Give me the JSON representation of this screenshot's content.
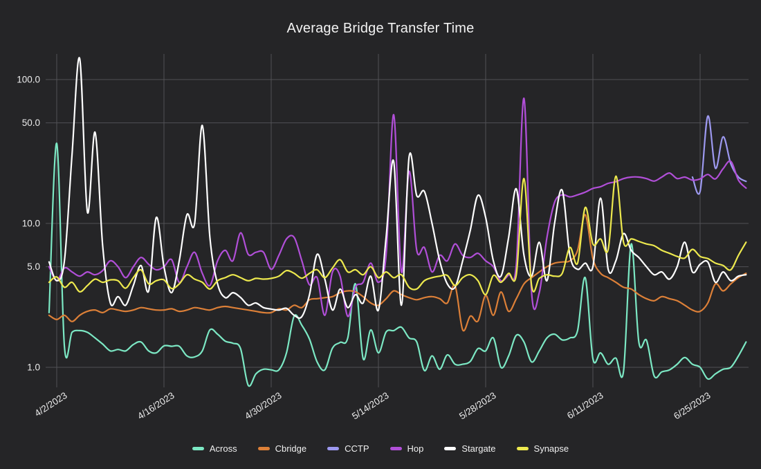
{
  "colors": {
    "background": "#252527",
    "grid": "#515156",
    "axis_text": "#ececec",
    "title_text": "#f2f2f2"
  },
  "chart_data": {
    "type": "line",
    "title": "Average Bridge Transfer Time",
    "xlabel": "",
    "ylabel": "",
    "y_scale": "log",
    "ylim": [
      0.72,
      150
    ],
    "grid": true,
    "legend_position": "bottom",
    "x_tick_labels": [
      "4/2/2023",
      "4/16/2023",
      "4/30/2023",
      "5/14/2023",
      "5/28/2023",
      "6/11/2023",
      "6/25/2023"
    ],
    "x_tick_days": [
      1,
      15,
      29,
      43,
      57,
      71,
      85
    ],
    "y_ticks": [
      {
        "label": "100.0",
        "value": 100
      },
      {
        "label": "50.0",
        "value": 50
      },
      {
        "label": "10.0",
        "value": 10
      },
      {
        "label": "5.0",
        "value": 5
      },
      {
        "label": "1.0",
        "value": 1
      }
    ],
    "dates": [
      "4/1",
      "4/2",
      "4/3",
      "4/4",
      "4/5",
      "4/6",
      "4/7",
      "4/8",
      "4/9",
      "4/10",
      "4/11",
      "4/12",
      "4/13",
      "4/14",
      "4/15",
      "4/16",
      "4/17",
      "4/18",
      "4/19",
      "4/20",
      "4/21",
      "4/22",
      "4/23",
      "4/24",
      "4/25",
      "4/26",
      "4/27",
      "4/28",
      "4/29",
      "4/30",
      "5/1",
      "5/2",
      "5/3",
      "5/4",
      "5/5",
      "5/6",
      "5/7",
      "5/8",
      "5/9",
      "5/10",
      "5/11",
      "5/12",
      "5/13",
      "5/14",
      "5/15",
      "5/16",
      "5/17",
      "5/18",
      "5/19",
      "5/20",
      "5/21",
      "5/22",
      "5/23",
      "5/24",
      "5/25",
      "5/26",
      "5/27",
      "5/28",
      "5/29",
      "5/30",
      "5/31",
      "6/1",
      "6/2",
      "6/3",
      "6/4",
      "6/5",
      "6/6",
      "6/7",
      "6/8",
      "6/9",
      "6/10",
      "6/11",
      "6/12",
      "6/13",
      "6/14",
      "6/15",
      "6/16",
      "6/17",
      "6/18",
      "6/19",
      "6/20",
      "6/21",
      "6/22",
      "6/23",
      "6/24",
      "6/25",
      "6/26",
      "6/27",
      "6/28",
      "6/29",
      "6/30",
      "7/1"
    ],
    "series": [
      {
        "name": "Across",
        "color": "#7ce8c4",
        "values": [
          2.4,
          36,
          1.4,
          1.75,
          1.8,
          1.75,
          1.6,
          1.45,
          1.3,
          1.33,
          1.3,
          1.44,
          1.5,
          1.3,
          1.26,
          1.41,
          1.4,
          1.4,
          1.2,
          1.18,
          1.3,
          1.82,
          1.7,
          1.52,
          1.47,
          1.35,
          0.75,
          0.9,
          0.97,
          0.96,
          0.96,
          1.26,
          2.27,
          1.96,
          1.57,
          1.09,
          0.96,
          1.36,
          1.49,
          1.6,
          3.8,
          1.15,
          1.82,
          1.26,
          1.76,
          1.8,
          1.9,
          1.6,
          1.5,
          0.95,
          1.2,
          0.97,
          1.22,
          1.05,
          1.05,
          1.1,
          1.35,
          1.3,
          1.6,
          1.0,
          1.2,
          1.67,
          1.5,
          1.09,
          1.3,
          1.6,
          1.7,
          1.55,
          1.6,
          1.8,
          4.2,
          1.15,
          1.26,
          1.05,
          1.16,
          0.94,
          7.2,
          1.5,
          1.54,
          0.87,
          0.93,
          0.96,
          1.05,
          1.17,
          1.05,
          1.0,
          0.83,
          0.9,
          0.97,
          1.0,
          1.2,
          1.5
        ]
      },
      {
        "name": "Cbridge",
        "color": "#dd8038",
        "values": [
          2.3,
          2.15,
          2.3,
          2.08,
          2.3,
          2.45,
          2.5,
          2.4,
          2.55,
          2.5,
          2.45,
          2.5,
          2.6,
          2.55,
          2.5,
          2.5,
          2.55,
          2.45,
          2.5,
          2.6,
          2.55,
          2.5,
          2.6,
          2.65,
          2.6,
          2.55,
          2.5,
          2.45,
          2.4,
          2.4,
          2.55,
          2.5,
          2.7,
          2.6,
          2.95,
          3.0,
          3.05,
          3.1,
          3.3,
          3.4,
          3.35,
          3.1,
          2.8,
          2.7,
          3.0,
          3.4,
          3.2,
          3.05,
          2.95,
          3.05,
          3.1,
          3.0,
          2.8,
          3.7,
          1.82,
          2.27,
          2.1,
          3.16,
          2.3,
          3.34,
          2.45,
          3.0,
          3.8,
          4.2,
          4.6,
          5.0,
          5.3,
          5.4,
          5.5,
          6.5,
          11.5,
          5.7,
          4.5,
          4.2,
          3.9,
          3.6,
          3.5,
          3.2,
          3.0,
          2.9,
          3.1,
          3.0,
          2.9,
          2.7,
          2.5,
          2.45,
          2.8,
          3.8,
          3.4,
          3.8,
          4.2,
          4.5
        ]
      },
      {
        "name": "CCTP",
        "color": "#9d99f0",
        "values": [
          null,
          null,
          null,
          null,
          null,
          null,
          null,
          null,
          null,
          null,
          null,
          null,
          null,
          null,
          null,
          null,
          null,
          null,
          null,
          null,
          null,
          null,
          null,
          null,
          null,
          null,
          null,
          null,
          null,
          null,
          null,
          null,
          null,
          null,
          null,
          null,
          null,
          null,
          null,
          null,
          null,
          null,
          null,
          null,
          null,
          null,
          null,
          null,
          null,
          null,
          null,
          null,
          null,
          null,
          null,
          null,
          null,
          null,
          null,
          null,
          null,
          null,
          null,
          null,
          null,
          null,
          null,
          null,
          null,
          null,
          null,
          null,
          null,
          null,
          null,
          null,
          null,
          null,
          null,
          null,
          null,
          null,
          null,
          null,
          21,
          16.7,
          55.7,
          24.2,
          40,
          26,
          21,
          19.6
        ]
      },
      {
        "name": "Hop",
        "color": "#b14fd8",
        "values": [
          5.0,
          4.0,
          4.9,
          4.6,
          4.3,
          4.6,
          4.4,
          4.7,
          5.5,
          5.0,
          4.2,
          5.0,
          5.8,
          5.2,
          4.76,
          5.0,
          5.6,
          3.9,
          5.0,
          6.3,
          4.5,
          3.7,
          5.5,
          6.5,
          5.5,
          8.6,
          6.1,
          6.3,
          6.3,
          4.8,
          6.0,
          7.8,
          8.0,
          5.5,
          3.74,
          4.2,
          2.3,
          4.6,
          4.3,
          2.26,
          3.6,
          3.9,
          5.3,
          3.9,
          6.0,
          57,
          4.6,
          23,
          6.5,
          6.8,
          4.6,
          6.0,
          5.5,
          7.2,
          6.0,
          5.8,
          6.2,
          5.5,
          5.0,
          4.0,
          4.4,
          5.2,
          74,
          3.3,
          3.3,
          8.0,
          14,
          15.8,
          15.3,
          15.8,
          16.5,
          17.5,
          18,
          19,
          19.5,
          20.5,
          21,
          21,
          20.5,
          19.7,
          21,
          22.4,
          20.5,
          21,
          20,
          20.4,
          21.9,
          20.4,
          24,
          27,
          20,
          17.6
        ]
      },
      {
        "name": "Stargate",
        "color": "#ffffff",
        "values": [
          5.4,
          4.0,
          5.5,
          30,
          140,
          12,
          43,
          7,
          2.8,
          3.1,
          2.7,
          3.7,
          5.1,
          3.4,
          11,
          5.0,
          3.3,
          5.5,
          11.5,
          10,
          48,
          8,
          3.8,
          3.05,
          3.3,
          3.06,
          2.7,
          2.8,
          2.6,
          2.54,
          2.5,
          2.57,
          2.3,
          2.25,
          3.2,
          6.1,
          4.1,
          2.5,
          3.5,
          2.6,
          3.2,
          2.8,
          4.3,
          2.5,
          8,
          27,
          2.7,
          29,
          15.6,
          16.7,
          10,
          5.5,
          3.8,
          3.6,
          5.5,
          9,
          15.7,
          11,
          5.5,
          4.3,
          8,
          17.4,
          6,
          4.3,
          7.4,
          4.0,
          10,
          17.0,
          6,
          4.8,
          5.3,
          5.0,
          15,
          4.8,
          5.5,
          8.5,
          6.5,
          5.8,
          5.0,
          4.4,
          4.6,
          4.1,
          5.0,
          7.4,
          4.6,
          5.2,
          5.4,
          3.9,
          4.6,
          4.0,
          4.3,
          4.4
        ]
      },
      {
        "name": "Synapse",
        "color": "#ede94e",
        "values": [
          3.9,
          4.25,
          3.6,
          3.9,
          3.35,
          3.7,
          4.1,
          3.9,
          4.05,
          4.0,
          3.55,
          4.2,
          4.76,
          3.8,
          4.0,
          4.05,
          3.53,
          3.8,
          4.4,
          4.1,
          3.9,
          3.5,
          4.0,
          4.2,
          4.4,
          4.2,
          4.0,
          4.15,
          4.1,
          4.15,
          4.3,
          4.7,
          4.5,
          4.16,
          4.5,
          4.77,
          4.2,
          4.9,
          5.6,
          4.6,
          4.77,
          4.4,
          5.0,
          4.2,
          4.6,
          4.2,
          4.4,
          3.6,
          3.5,
          4.0,
          4.2,
          4.3,
          4.35,
          3.7,
          4.2,
          4.4,
          4.0,
          3.2,
          4.35,
          3.9,
          4.5,
          4.4,
          20.5,
          3.7,
          4.15,
          4.4,
          4.3,
          4.5,
          6.8,
          5.3,
          12.9,
          7.2,
          7.8,
          6.6,
          21.3,
          7.4,
          7.8,
          7.5,
          7.2,
          7.0,
          6.5,
          6.2,
          5.9,
          5.75,
          6.6,
          5.9,
          5.7,
          5.3,
          5.1,
          4.76,
          6.0,
          7.4
        ]
      }
    ]
  }
}
